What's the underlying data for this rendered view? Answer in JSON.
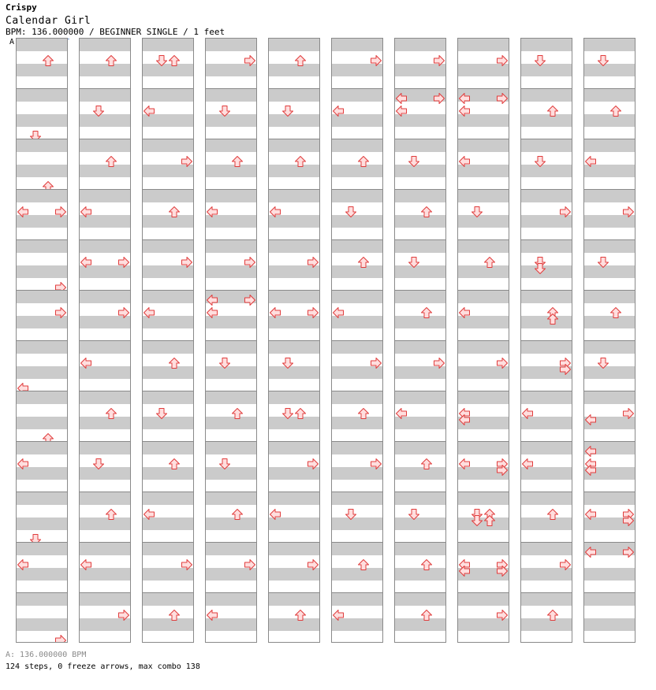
{
  "header": {
    "author": "Crispy",
    "title": "Calendar Girl",
    "bpm_info": "BPM: 136.000000 / BEGINNER SINGLE / 1 feet"
  },
  "bpm_marker": {
    "label": "A"
  },
  "footer": {
    "bpm_legend": "A: 136.000000 BPM",
    "stats": "124 steps, 0 freeze arrows, max combo 138"
  },
  "chart_data": {
    "type": "step-chart",
    "columns": 10,
    "measures_per_column": 12,
    "lanes": [
      "left",
      "down",
      "up",
      "right"
    ],
    "arrow_colors": {
      "fill": "#ffdede",
      "stroke": "#e03c3c"
    },
    "measures": [
      [
        [
          3,
          2
        ]
      ],
      [
        [
          7,
          1
        ]
      ],
      [
        [
          7,
          2
        ]
      ],
      [
        [
          3,
          0
        ],
        [
          3,
          3
        ]
      ],
      [
        [
          7,
          3
        ]
      ],
      [
        [
          3,
          3
        ]
      ],
      [
        [
          7,
          0
        ]
      ],
      [
        [
          7,
          2
        ]
      ],
      [
        [
          3,
          0
        ]
      ],
      [
        [
          7,
          1
        ]
      ],
      [
        [
          3,
          0
        ]
      ],
      [
        [
          7,
          3
        ]
      ],
      [
        [
          3,
          2
        ]
      ],
      [
        [
          3,
          1
        ]
      ],
      [
        [
          3,
          2
        ]
      ],
      [
        [
          3,
          0
        ]
      ],
      [
        [
          3,
          0
        ],
        [
          3,
          3
        ]
      ],
      [
        [
          3,
          3
        ]
      ],
      [
        [
          3,
          0
        ]
      ],
      [
        [
          3,
          2
        ]
      ],
      [
        [
          3,
          1
        ]
      ],
      [
        [
          3,
          2
        ]
      ],
      [
        [
          3,
          0
        ]
      ],
      [
        [
          3,
          3
        ]
      ],
      [
        [
          3,
          1
        ],
        [
          3,
          2
        ]
      ],
      [
        [
          3,
          0
        ]
      ],
      [
        [
          3,
          3
        ]
      ],
      [
        [
          3,
          2
        ]
      ],
      [
        [
          3,
          3
        ]
      ],
      [
        [
          3,
          0
        ]
      ],
      [
        [
          3,
          2
        ]
      ],
      [
        [
          3,
          1
        ]
      ],
      [
        [
          3,
          2
        ]
      ],
      [
        [
          3,
          0
        ]
      ],
      [
        [
          3,
          3
        ]
      ],
      [
        [
          3,
          2
        ]
      ],
      [
        [
          3,
          3
        ]
      ],
      [
        [
          3,
          1
        ]
      ],
      [
        [
          3,
          2
        ]
      ],
      [
        [
          3,
          0
        ]
      ],
      [
        [
          3,
          3
        ]
      ],
      [
        [
          1,
          0
        ],
        [
          1,
          3
        ],
        [
          3,
          0
        ]
      ],
      [
        [
          3,
          1
        ]
      ],
      [
        [
          3,
          2
        ]
      ],
      [
        [
          3,
          1
        ]
      ],
      [
        [
          3,
          2
        ]
      ],
      [
        [
          3,
          3
        ]
      ],
      [
        [
          3,
          0
        ]
      ],
      [
        [
          3,
          2
        ]
      ],
      [
        [
          3,
          1
        ]
      ],
      [
        [
          3,
          2
        ]
      ],
      [
        [
          3,
          0
        ]
      ],
      [
        [
          3,
          3
        ]
      ],
      [
        [
          3,
          0
        ],
        [
          3,
          3
        ]
      ],
      [
        [
          3,
          1
        ]
      ],
      [
        [
          3,
          1
        ],
        [
          3,
          2
        ]
      ],
      [
        [
          3,
          3
        ]
      ],
      [
        [
          3,
          0
        ]
      ],
      [
        [
          3,
          3
        ]
      ],
      [
        [
          3,
          2
        ]
      ],
      [
        [
          3,
          3
        ]
      ],
      [
        [
          3,
          0
        ]
      ],
      [
        [
          3,
          2
        ]
      ],
      [
        [
          3,
          1
        ]
      ],
      [
        [
          3,
          2
        ]
      ],
      [
        [
          3,
          0
        ]
      ],
      [
        [
          3,
          3
        ]
      ],
      [
        [
          3,
          2
        ]
      ],
      [
        [
          3,
          3
        ]
      ],
      [
        [
          3,
          1
        ]
      ],
      [
        [
          3,
          2
        ]
      ],
      [
        [
          3,
          0
        ]
      ],
      [
        [
          3,
          3
        ]
      ],
      [
        [
          1,
          0
        ],
        [
          1,
          3
        ],
        [
          3,
          0
        ]
      ],
      [
        [
          3,
          1
        ]
      ],
      [
        [
          3,
          2
        ]
      ],
      [
        [
          3,
          1
        ]
      ],
      [
        [
          3,
          2
        ]
      ],
      [
        [
          3,
          3
        ]
      ],
      [
        [
          3,
          0
        ]
      ],
      [
        [
          3,
          2
        ]
      ],
      [
        [
          3,
          1
        ]
      ],
      [
        [
          3,
          2
        ]
      ],
      [
        [
          3,
          2
        ]
      ],
      [
        [
          3,
          3
        ]
      ],
      [
        [
          1,
          0
        ],
        [
          1,
          3
        ],
        [
          3,
          0
        ]
      ],
      [
        [
          3,
          0
        ]
      ],
      [
        [
          3,
          1
        ]
      ],
      [
        [
          3,
          2
        ]
      ],
      [
        [
          3,
          0
        ]
      ],
      [
        [
          3,
          3
        ]
      ],
      [
        [
          3,
          0
        ],
        [
          4,
          0
        ]
      ],
      [
        [
          3,
          0
        ],
        [
          3,
          3
        ],
        [
          4,
          3
        ]
      ],
      [
        [
          3,
          1
        ],
        [
          3,
          2
        ],
        [
          4,
          1
        ],
        [
          4,
          2
        ]
      ],
      [
        [
          3,
          0
        ],
        [
          3,
          3
        ],
        [
          4,
          0
        ],
        [
          4,
          3
        ]
      ],
      [
        [
          3,
          3
        ]
      ],
      [
        [
          3,
          1
        ]
      ],
      [
        [
          3,
          2
        ]
      ],
      [
        [
          3,
          1
        ]
      ],
      [
        [
          3,
          3
        ]
      ],
      [
        [
          3,
          1
        ],
        [
          4,
          1
        ]
      ],
      [
        [
          3,
          2
        ],
        [
          4,
          2
        ]
      ],
      [
        [
          3,
          3
        ],
        [
          4,
          3
        ]
      ],
      [
        [
          3,
          0
        ]
      ],
      [
        [
          3,
          0
        ]
      ],
      [
        [
          3,
          2
        ]
      ],
      [
        [
          3,
          3
        ]
      ],
      [
        [
          3,
          2
        ]
      ],
      [
        [
          3,
          1
        ]
      ],
      [
        [
          3,
          2
        ]
      ],
      [
        [
          3,
          0
        ]
      ],
      [
        [
          3,
          3
        ]
      ],
      [
        [
          3,
          1
        ]
      ],
      [
        [
          3,
          2
        ]
      ],
      [
        [
          3,
          1
        ]
      ],
      [
        [
          4,
          0
        ],
        [
          3,
          3
        ]
      ],
      [
        [
          1,
          0
        ],
        [
          3,
          0
        ],
        [
          4,
          0
        ]
      ],
      [
        [
          3,
          0
        ],
        [
          3,
          3
        ],
        [
          4,
          3
        ]
      ],
      [
        [
          1,
          0
        ],
        [
          1,
          3
        ]
      ]
    ]
  }
}
